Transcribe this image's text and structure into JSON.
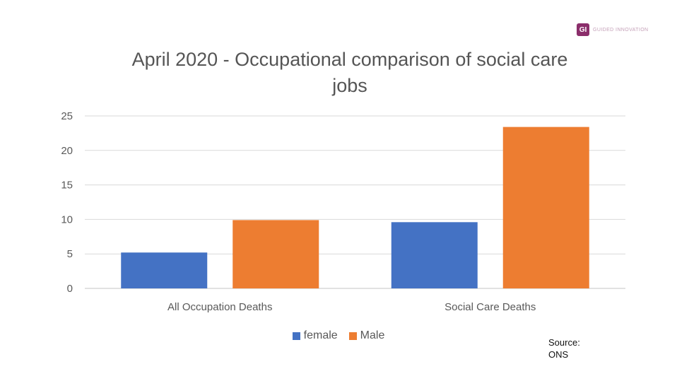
{
  "logo": {
    "badge": "GI",
    "text": "Guided Innovation"
  },
  "source": {
    "line1": "Source:",
    "line2": "ONS"
  },
  "colors": {
    "female": "#4472c4",
    "male": "#ed7d31",
    "grid": "#d9d9d9"
  },
  "chart_data": {
    "type": "bar",
    "title": "April 2020 - Occupational comparison of social care jobs",
    "title_lines": [
      "April 2020 - Occupational comparison of social care",
      "jobs"
    ],
    "xlabel": "",
    "ylabel": "",
    "categories": [
      "All Occupation Deaths",
      "Social Care Deaths"
    ],
    "series": [
      {
        "name": "female",
        "values": [
          5.2,
          9.6
        ]
      },
      {
        "name": "Male",
        "values": [
          9.9,
          23.4
        ]
      }
    ],
    "ylim": [
      0,
      25
    ],
    "yticks": [
      0,
      5,
      10,
      15,
      20,
      25
    ],
    "grid": true,
    "legend": "bottom"
  }
}
